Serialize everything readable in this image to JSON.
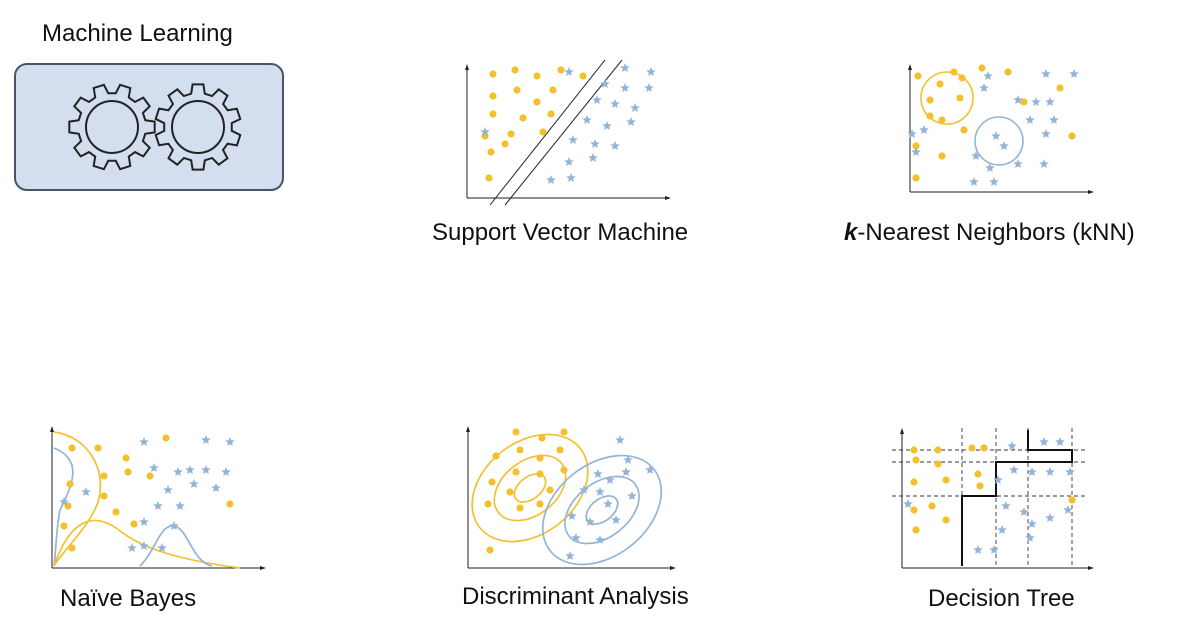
{
  "header": {
    "title": "Machine Learning"
  },
  "icons": {
    "gears": "gears-icon"
  },
  "colors": {
    "class_a": "#f4c02d",
    "class_b": "#93b4d6",
    "box_fill": "#d3deef",
    "box_border": "#48546a"
  },
  "panels": {
    "svm": {
      "label": "Support Vector Machine"
    },
    "knn": {
      "k": "k",
      "label_rest": "-Nearest Neighbors (kNN)"
    },
    "nb": {
      "label": "Naïve Bayes"
    },
    "da": {
      "label": "Discriminant Analysis"
    },
    "dt": {
      "label": "Decision Tree"
    }
  }
}
